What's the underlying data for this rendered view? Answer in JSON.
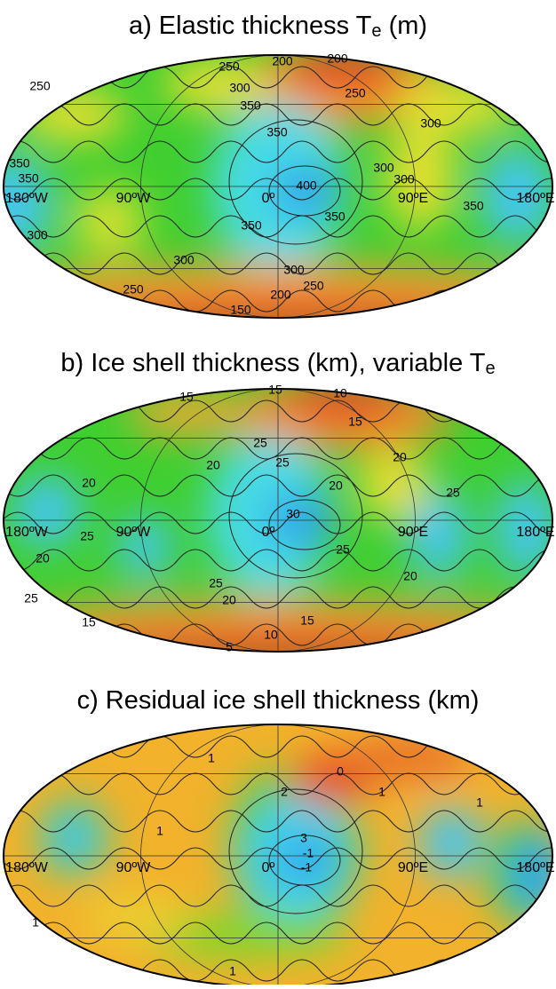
{
  "panels": [
    {
      "title": [
        "a) Elastic thickness T",
        "e",
        " (m)"
      ],
      "lon_labels": [
        "180ºW",
        "90ºW",
        "0º",
        "90ºE",
        "180ºE"
      ],
      "contour_labels": [
        250,
        200,
        200,
        250,
        300,
        350,
        250,
        350,
        300,
        350,
        350,
        300,
        400,
        300,
        350,
        350,
        350,
        300,
        300,
        300,
        250,
        250,
        200,
        150
      ]
    },
    {
      "title": [
        "b) Ice shell thickness (km), variable T",
        "e",
        ""
      ],
      "lon_labels": [
        "180ºW",
        "90ºW",
        "0º",
        "90ºE",
        "180ºE"
      ],
      "contour_labels": [
        15,
        15,
        10,
        15,
        25,
        20,
        20,
        25,
        20,
        20,
        25,
        30,
        25,
        20,
        25,
        20,
        25,
        20,
        25,
        15,
        15,
        10,
        5
      ]
    },
    {
      "title": [
        "c) Residual ice shell thickness (km)"
      ],
      "lon_labels": [
        "180ºW",
        "90ºW",
        "0º",
        "90ºE",
        "180ºE"
      ],
      "contour_labels": [
        1,
        0,
        2,
        1,
        1,
        3,
        1,
        -1,
        -1,
        1,
        1
      ]
    }
  ]
}
